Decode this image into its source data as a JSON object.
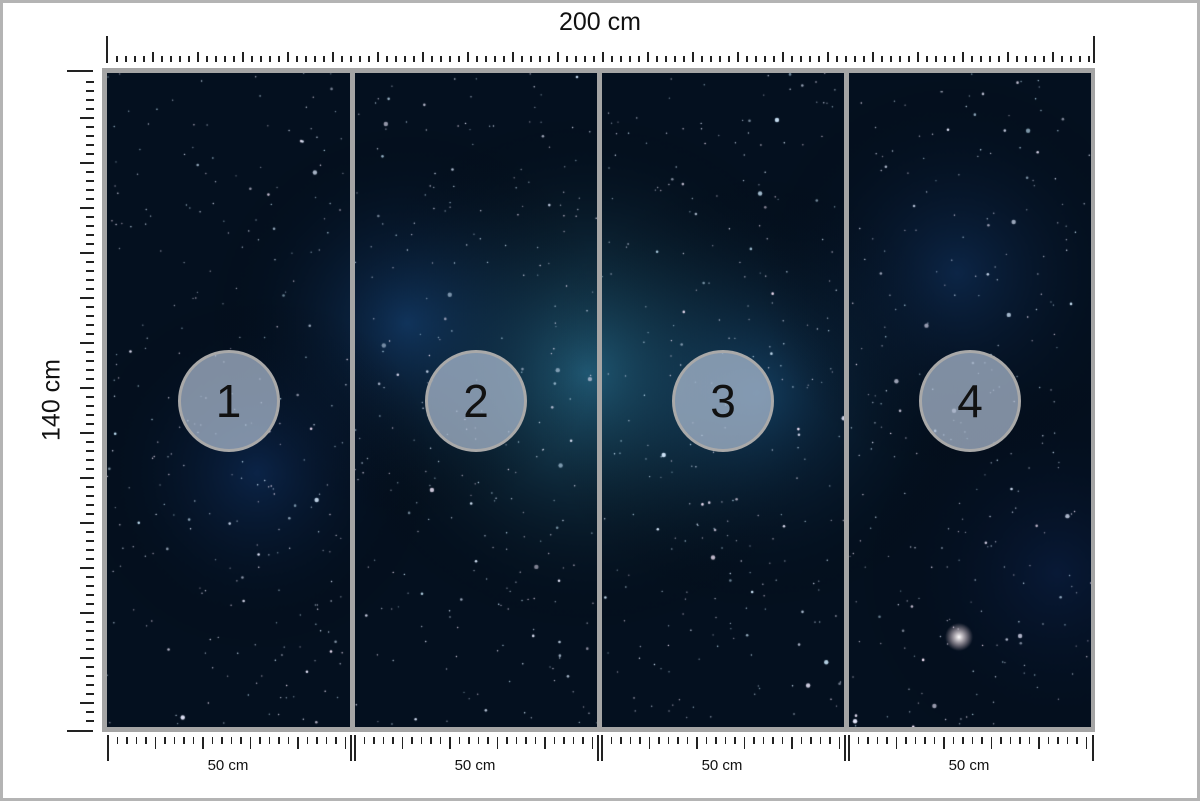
{
  "dimensions": {
    "width_label": "200 cm",
    "height_label": "140 cm"
  },
  "panels": [
    {
      "number": "1",
      "width_label": "50 cm"
    },
    {
      "number": "2",
      "width_label": "50 cm"
    },
    {
      "number": "3",
      "width_label": "50 cm"
    },
    {
      "number": "4",
      "width_label": "50 cm"
    }
  ],
  "colors": {
    "frame": "#a5a5a5",
    "space": "#061326",
    "nebula": "#2a7fb0"
  }
}
